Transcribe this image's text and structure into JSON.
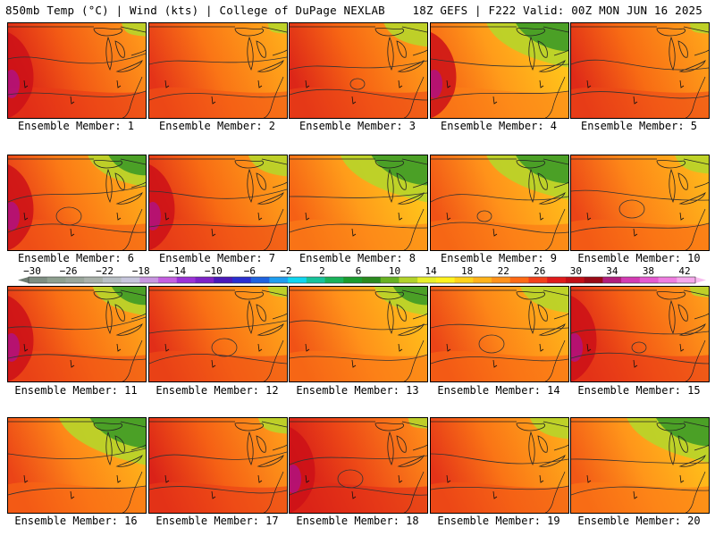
{
  "header": {
    "left": "850mb Temp (°C) | Wind (kts) | College of DuPage NEXLAB",
    "right": "18Z GEFS | F222 Valid: 00Z MON JUN 16 2025"
  },
  "caption_prefix": "Ensemble Member:",
  "members": [
    {
      "number": 1,
      "caption": "Ensemble Member: 1",
      "warm": 0.72,
      "hot_west": true,
      "cool_ne": 0.25
    },
    {
      "number": 2,
      "caption": "Ensemble Member: 2",
      "warm": 0.62,
      "hot_west": false,
      "cool_ne": 0.2
    },
    {
      "number": 3,
      "caption": "Ensemble Member: 3",
      "warm": 0.68,
      "hot_west": false,
      "cool_ne": 0.45
    },
    {
      "number": 4,
      "caption": "Ensemble Member: 4",
      "warm": 0.45,
      "hot_west": true,
      "cool_ne": 0.85
    },
    {
      "number": 5,
      "caption": "Ensemble Member: 5",
      "warm": 0.66,
      "hot_west": false,
      "cool_ne": 0.2
    },
    {
      "number": 6,
      "caption": "Ensemble Member: 6",
      "warm": 0.6,
      "hot_west": true,
      "cool_ne": 0.6
    },
    {
      "number": 7,
      "caption": "Ensemble Member: 7",
      "warm": 0.66,
      "hot_west": true,
      "cool_ne": 0.4
    },
    {
      "number": 8,
      "caption": "Ensemble Member: 8",
      "warm": 0.45,
      "hot_west": false,
      "cool_ne": 0.9
    },
    {
      "number": 9,
      "caption": "Ensemble Member: 9",
      "warm": 0.5,
      "hot_west": false,
      "cool_ne": 0.85
    },
    {
      "number": 10,
      "caption": "Ensemble Member: 10",
      "warm": 0.55,
      "hot_west": false,
      "cool_ne": 0.35
    },
    {
      "number": 11,
      "caption": "Ensemble Member: 11",
      "warm": 0.64,
      "hot_west": true,
      "cool_ne": 0.55
    },
    {
      "number": 12,
      "caption": "Ensemble Member: 12",
      "warm": 0.64,
      "hot_west": false,
      "cool_ne": 0.2
    },
    {
      "number": 13,
      "caption": "Ensemble Member: 13",
      "warm": 0.5,
      "hot_west": false,
      "cool_ne": 0.55
    },
    {
      "number": 14,
      "caption": "Ensemble Member: 14",
      "warm": 0.55,
      "hot_west": false,
      "cool_ne": 0.5
    },
    {
      "number": 15,
      "caption": "Ensemble Member: 15",
      "warm": 0.7,
      "hot_west": true,
      "cool_ne": 0.2
    },
    {
      "number": 16,
      "caption": "Ensemble Member: 16",
      "warm": 0.55,
      "hot_west": false,
      "cool_ne": 0.9
    },
    {
      "number": 17,
      "caption": "Ensemble Member: 17",
      "warm": 0.7,
      "hot_west": false,
      "cool_ne": 0.3
    },
    {
      "number": 18,
      "caption": "Ensemble Member: 18",
      "warm": 0.78,
      "hot_west": true,
      "cool_ne": 0.2
    },
    {
      "number": 19,
      "caption": "Ensemble Member: 19",
      "warm": 0.62,
      "hot_west": false,
      "cool_ne": 0.4
    },
    {
      "number": 20,
      "caption": "Ensemble Member: 20",
      "warm": 0.48,
      "hot_west": false,
      "cool_ne": 0.85
    }
  ],
  "colorbar": {
    "labels": [
      "-30",
      "-26",
      "-22",
      "-18",
      "-14",
      "-10",
      "-6",
      "-2",
      "2",
      "6",
      "10",
      "14",
      "18",
      "22",
      "26",
      "30",
      "34",
      "38",
      "42"
    ],
    "colors": [
      "#7e8e82",
      "#8ea08f",
      "#9aa79b",
      "#a9b1aa",
      "#b8bfc4",
      "#c7c6dd",
      "#c896e0",
      "#c45fe0",
      "#9b32d6",
      "#7d22c6",
      "#4a19b8",
      "#2a2fd0",
      "#1f63e0",
      "#1f9ff0",
      "#10d6f0",
      "#17c39b",
      "#19b25a",
      "#1a9c2e",
      "#2a8a1e",
      "#68b222",
      "#b2d32a",
      "#e8ef2a",
      "#fff21e",
      "#ffd21a",
      "#ffb21a",
      "#ff921a",
      "#ff6a14",
      "#f3401a",
      "#e01a1a",
      "#c20f16",
      "#9a0a16",
      "#b11e7d",
      "#d33bb3",
      "#e55ad0",
      "#ef7ee0",
      "#f6a8ec"
    ]
  }
}
